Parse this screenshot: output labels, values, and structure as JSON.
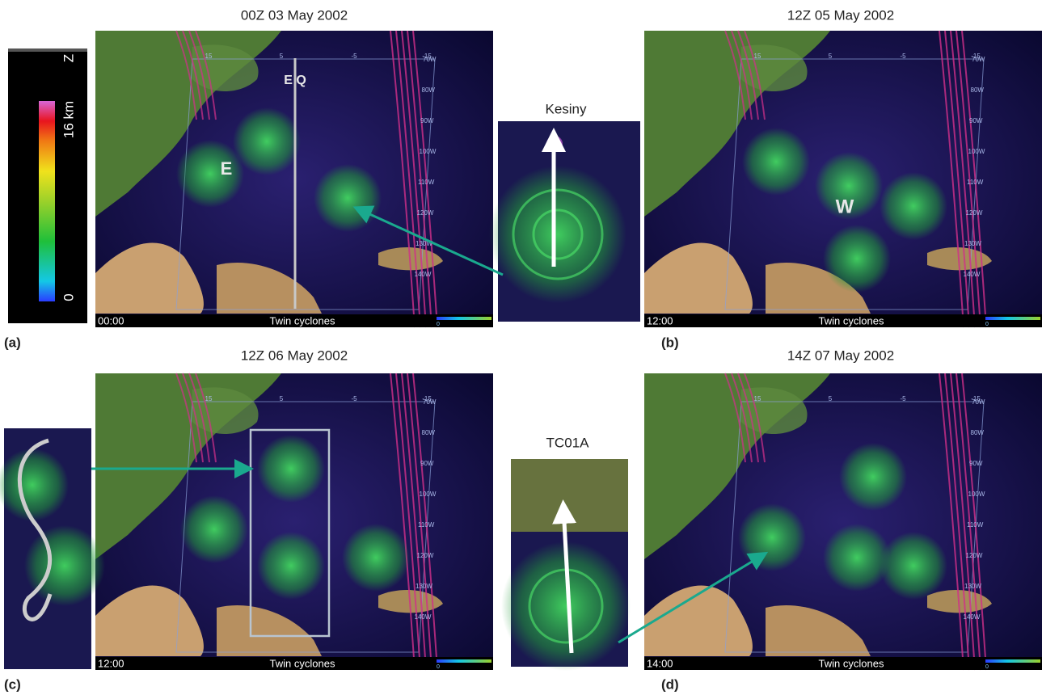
{
  "panels": [
    {
      "label": "(a)",
      "title": "00Z 03 May 2002",
      "time": "00:00",
      "caption": "Twin cyclones",
      "annotations": [
        "E Q",
        "E"
      ]
    },
    {
      "label": "(b)",
      "title": "12Z 05 May 2002",
      "time": "12:00",
      "caption": "Twin cyclones",
      "annotations": [
        "W"
      ]
    },
    {
      "label": "(c)",
      "title": "12Z 06 May 2002",
      "time": "12:00",
      "caption": "Twin cyclones",
      "annotations": []
    },
    {
      "label": "(d)",
      "title": "14Z 07 May 2002",
      "time": "14:00",
      "caption": "Twin cyclones",
      "annotations": []
    }
  ],
  "colorbar": {
    "axis": "Z",
    "max": "16 km",
    "min": "0"
  },
  "insets": [
    {
      "title": "Kesiny"
    },
    {
      "title": "TC01A"
    }
  ],
  "map_grid": {
    "lon": [
      "15",
      "5",
      "-5",
      "-15"
    ],
    "lat": [
      "70W",
      "80W",
      "90W",
      "100W",
      "110W",
      "120W",
      "130W",
      "140W"
    ]
  }
}
